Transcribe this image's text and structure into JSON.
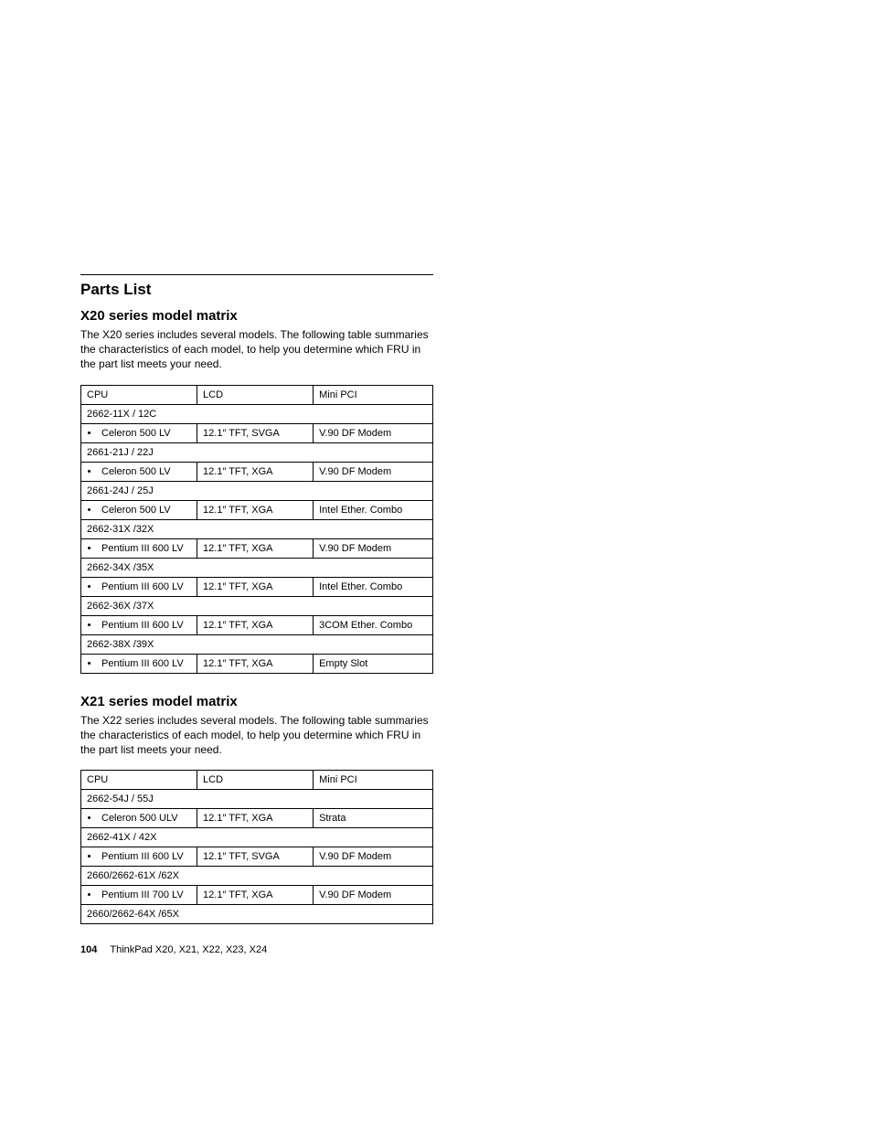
{
  "page": {
    "parts_list_heading": "Parts List",
    "footer_page": "104",
    "footer_text": "ThinkPad X20, X21, X22, X23, X24"
  },
  "x20": {
    "heading": "X20 series model matrix",
    "intro": "The X20 series includes several models. The following table summaries the characteristics of each model, to help you determine which FRU in the part list meets your need.",
    "columns": {
      "cpu": "CPU",
      "lcd": "LCD",
      "mini": "Mini PCI"
    },
    "rows": [
      {
        "group": "2662-11X / 12C"
      },
      {
        "cpu": "Celeron 500 LV",
        "lcd": "12.1″ TFT, SVGA",
        "mini": "V.90 DF Modem"
      },
      {
        "group": "2661-21J / 22J"
      },
      {
        "cpu": "Celeron 500 LV",
        "lcd": "12.1″ TFT, XGA",
        "mini": "V.90 DF Modem"
      },
      {
        "group": "2661-24J / 25J"
      },
      {
        "cpu": "Celeron 500 LV",
        "lcd": "12.1″ TFT, XGA",
        "mini": "Intel Ether. Combo"
      },
      {
        "group": "2662-31X /32X"
      },
      {
        "cpu": "Pentium III 600 LV",
        "lcd": "12.1″ TFT, XGA",
        "mini": "V.90 DF Modem"
      },
      {
        "group": "2662-34X /35X"
      },
      {
        "cpu": "Pentium III 600 LV",
        "lcd": "12.1″ TFT, XGA",
        "mini": "Intel Ether. Combo"
      },
      {
        "group": "2662-36X /37X"
      },
      {
        "cpu": "Pentium III 600 LV",
        "lcd": "12.1″ TFT, XGA",
        "mini": "3COM Ether. Combo"
      },
      {
        "group": "2662-38X /39X"
      },
      {
        "cpu": "Pentium III 600 LV",
        "lcd": "12.1″ TFT, XGA",
        "mini": "Empty Slot"
      }
    ]
  },
  "x21": {
    "heading": "X21 series model matrix",
    "intro": "The X22 series includes several models. The following table summaries the characteristics of each model, to help you determine which FRU in the part list meets your need.",
    "columns": {
      "cpu": "CPU",
      "lcd": "LCD",
      "mini": "Mini PCI"
    },
    "rows": [
      {
        "group": "2662-54J / 55J"
      },
      {
        "cpu": "Celeron 500 ULV",
        "lcd": "12.1″ TFT, XGA",
        "mini": "Strata"
      },
      {
        "group": "2662-41X / 42X"
      },
      {
        "cpu": "Pentium III 600 LV",
        "lcd": "12.1″ TFT, SVGA",
        "mini": "V.90 DF Modem"
      },
      {
        "group": "2660/2662-61X /62X"
      },
      {
        "cpu": "Pentium III 700 LV",
        "lcd": "12.1″ TFT, XGA",
        "mini": "V.90 DF Modem"
      },
      {
        "group": "2660/2662-64X /65X"
      }
    ]
  }
}
